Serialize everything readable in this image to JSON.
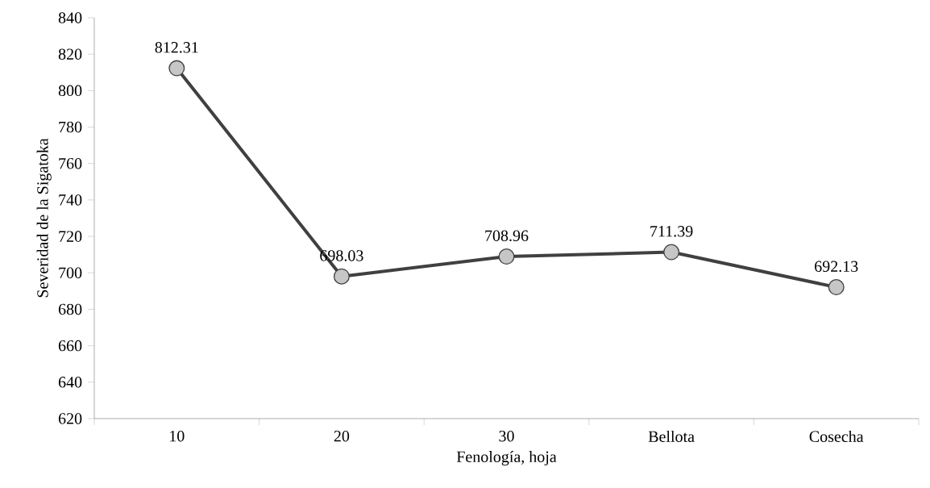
{
  "chart_data": {
    "type": "line",
    "xlabel": "Fenología, hoja",
    "ylabel": "Severidad de la Sigatoka",
    "categories": [
      "10",
      "20",
      "30",
      "Bellota",
      "Cosecha"
    ],
    "values": [
      812.31,
      698.03,
      708.96,
      711.39,
      692.13
    ],
    "color": "#404040",
    "marker": "circle",
    "line_style": "solid",
    "data_labels": true,
    "grid": false,
    "ylim": [
      620,
      840
    ],
    "yticks": [
      620,
      640,
      660,
      680,
      700,
      720,
      740,
      760,
      780,
      800,
      820,
      840
    ]
  }
}
